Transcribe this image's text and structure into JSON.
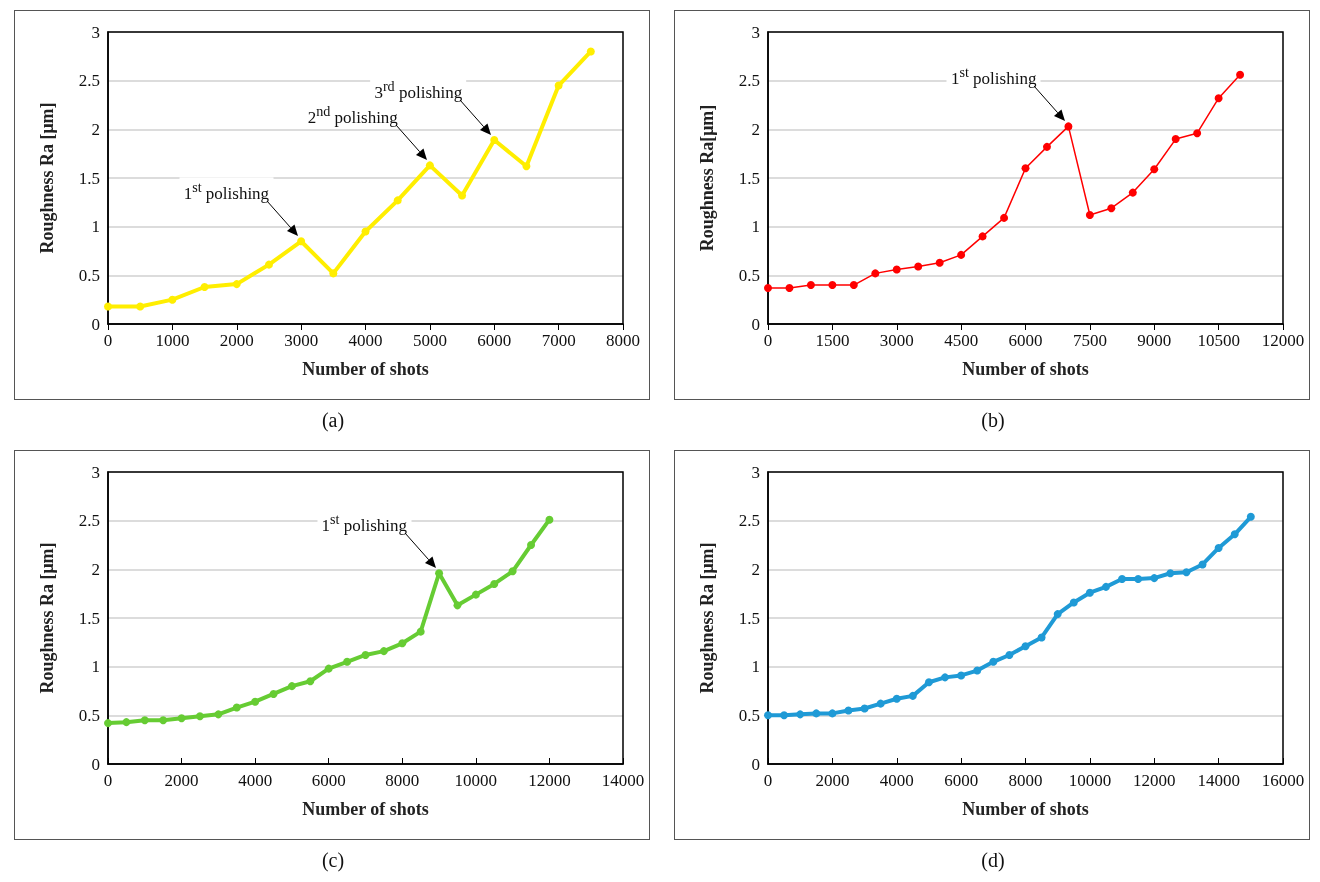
{
  "chart_data": [
    {
      "type": "line",
      "title": "(a)",
      "xlabel": "Number of shots",
      "ylabel": "Roughness Ra [μm]",
      "x": [
        0,
        500,
        1000,
        1500,
        2000,
        2500,
        3000,
        3500,
        4000,
        4500,
        5000,
        5500,
        6000,
        6500,
        7000,
        7500
      ],
      "series": [
        {
          "color": "#ffee00",
          "values": [
            0.18,
            0.18,
            0.25,
            0.38,
            0.41,
            0.61,
            0.85,
            0.52,
            0.95,
            1.27,
            1.63,
            1.32,
            1.89,
            1.62,
            2.45,
            2.8
          ]
        }
      ],
      "xlim": [
        0,
        8000
      ],
      "xticks": [
        0,
        1000,
        2000,
        3000,
        4000,
        5000,
        6000,
        7000,
        8000
      ],
      "ylim": [
        0,
        3
      ],
      "yticks": [
        0,
        0.5,
        1,
        1.5,
        2,
        2.5,
        3
      ],
      "grid": "y",
      "marker": "circle",
      "line_style": "solid",
      "annotations": [
        {
          "text": "1$^{st}$ polishing",
          "x": 3000,
          "y": 0.85
        },
        {
          "text": "2$^{nd}$ polishing",
          "x": 5000,
          "y": 1.63
        },
        {
          "text": "3$^{rd}$ polishing",
          "x": 6000,
          "y": 1.89
        }
      ]
    },
    {
      "type": "line",
      "title": "(b)",
      "xlabel": "Number of shots",
      "ylabel": "Roughness Ra[μm]",
      "x": [
        0,
        500,
        1000,
        1500,
        2000,
        2500,
        3000,
        3500,
        4000,
        4500,
        5000,
        5500,
        6000,
        6500,
        7000,
        7500,
        8000,
        8500,
        9000,
        9500,
        10000,
        10500,
        11000
      ],
      "series": [
        {
          "color": "#ff0000",
          "values": [
            0.37,
            0.37,
            0.4,
            0.4,
            0.4,
            0.52,
            0.56,
            0.59,
            0.63,
            0.71,
            0.9,
            1.09,
            1.6,
            1.82,
            2.03,
            1.12,
            1.19,
            1.35,
            1.59,
            1.9,
            1.96,
            2.32,
            2.56
          ]
        }
      ],
      "xlim": [
        0,
        12000
      ],
      "xticks": [
        0,
        1500,
        3000,
        4500,
        6000,
        7500,
        9000,
        10500,
        12000
      ],
      "ylim": [
        0,
        3
      ],
      "yticks": [
        0,
        0.5,
        1,
        1.5,
        2,
        2.5,
        3
      ],
      "grid": "y",
      "marker": "circle",
      "line_style": "solid",
      "annotations": [
        {
          "text": "1$^{st}$ polishing",
          "x": 7000,
          "y": 2.03
        }
      ]
    },
    {
      "type": "line",
      "title": "(c)",
      "xlabel": "Number of shots",
      "ylabel": "Roughness Ra [μm]",
      "x": [
        0,
        500,
        1000,
        1500,
        2000,
        2500,
        3000,
        3500,
        4000,
        4500,
        5000,
        5500,
        6000,
        6500,
        7000,
        7500,
        8000,
        8500,
        9000,
        9500,
        10000,
        10500,
        11000,
        11500,
        12000
      ],
      "series": [
        {
          "color": "#66cc33",
          "values": [
            0.42,
            0.43,
            0.45,
            0.45,
            0.47,
            0.49,
            0.51,
            0.58,
            0.64,
            0.72,
            0.8,
            0.85,
            0.98,
            1.05,
            1.12,
            1.16,
            1.24,
            1.36,
            1.96,
            1.63,
            1.74,
            1.85,
            1.98,
            2.25,
            2.51
          ]
        }
      ],
      "xlim": [
        0,
        14000
      ],
      "xticks": [
        0,
        2000,
        4000,
        6000,
        8000,
        10000,
        12000,
        14000
      ],
      "ylim": [
        0,
        3
      ],
      "yticks": [
        0,
        0.5,
        1,
        1.5,
        2,
        2.5,
        3
      ],
      "grid": "y",
      "marker": "circle",
      "line_style": "solid",
      "annotations": [
        {
          "text": "1$^{st}$ polishing",
          "x": 9000,
          "y": 1.96
        }
      ]
    },
    {
      "type": "line",
      "title": "(d)",
      "xlabel": "Number of shots",
      "ylabel": "Roughness Ra [μm]",
      "x": [
        0,
        500,
        1000,
        1500,
        2000,
        2500,
        3000,
        3500,
        4000,
        4500,
        5000,
        5500,
        6000,
        6500,
        7000,
        7500,
        8000,
        8500,
        9000,
        9500,
        10000,
        10500,
        11000,
        11500,
        12000,
        12500,
        13000,
        13500,
        14000,
        14500,
        15000
      ],
      "series": [
        {
          "color": "#1f9ad6",
          "values": [
            0.5,
            0.5,
            0.51,
            0.52,
            0.52,
            0.55,
            0.57,
            0.62,
            0.67,
            0.7,
            0.84,
            0.89,
            0.91,
            0.96,
            1.05,
            1.12,
            1.21,
            1.3,
            1.54,
            1.66,
            1.76,
            1.82,
            1.9,
            1.9,
            1.91,
            1.96,
            1.97,
            2.05,
            2.22,
            2.36,
            2.54
          ]
        }
      ],
      "xlim": [
        0,
        16000
      ],
      "xticks": [
        0,
        2000,
        4000,
        6000,
        8000,
        10000,
        12000,
        14000,
        16000
      ],
      "ylim": [
        0,
        3
      ],
      "yticks": [
        0,
        0.5,
        1,
        1.5,
        2,
        2.5,
        3
      ],
      "grid": "y",
      "marker": "circle",
      "line_style": "solid"
    }
  ]
}
